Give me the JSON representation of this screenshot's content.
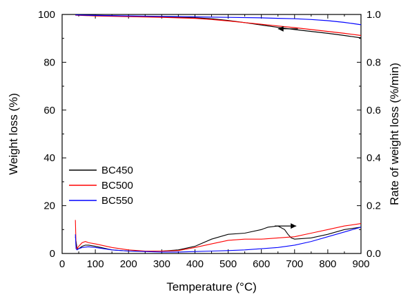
{
  "chart_data": {
    "type": "line",
    "title": "",
    "xlabel": "Temperature (°C)",
    "ylabel_left": "Weight loss (%)",
    "ylabel_right": "Rate of weight loss (%/min)",
    "xlim": [
      0,
      900
    ],
    "ylim_left": [
      0,
      100
    ],
    "ylim_right": [
      0,
      1.0
    ],
    "x_ticks": [
      0,
      100,
      200,
      300,
      400,
      500,
      600,
      700,
      800,
      900
    ],
    "y_left_ticks": [
      0,
      20,
      40,
      60,
      80,
      100
    ],
    "y_right_ticks": [
      "0.0",
      "0.2",
      "0.4",
      "0.6",
      "0.8",
      "1.0"
    ],
    "grid": false,
    "legend_position": "lower-left",
    "series": [
      {
        "name": "BC450",
        "color": "#000000",
        "weight_loss": {
          "x": [
            40,
            100,
            200,
            300,
            400,
            450,
            500,
            550,
            600,
            650,
            700,
            750,
            800,
            850,
            900
          ],
          "y": [
            99.8,
            99.6,
            99.3,
            99.0,
            98.6,
            98.2,
            97.5,
            96.6,
            95.6,
            94.6,
            93.7,
            92.9,
            92.1,
            91.2,
            90.2
          ]
        },
        "rate": {
          "x": [
            40,
            45,
            50,
            60,
            70,
            80,
            100,
            150,
            200,
            250,
            300,
            350,
            400,
            450,
            500,
            550,
            600,
            620,
            650,
            670,
            680,
            690,
            700,
            750,
            800,
            850,
            900
          ],
          "y": [
            0.07,
            0.02,
            0.02,
            0.03,
            0.035,
            0.035,
            0.03,
            0.015,
            0.01,
            0.01,
            0.01,
            0.015,
            0.03,
            0.06,
            0.08,
            0.085,
            0.1,
            0.11,
            0.115,
            0.1,
            0.08,
            0.065,
            0.06,
            0.065,
            0.08,
            0.1,
            0.11
          ]
        }
      },
      {
        "name": "BC500",
        "color": "#ff0000",
        "weight_loss": {
          "x": [
            40,
            100,
            200,
            300,
            400,
            450,
            500,
            550,
            600,
            650,
            700,
            750,
            800,
            850,
            900
          ],
          "y": [
            99.7,
            99.4,
            99.1,
            98.8,
            98.4,
            97.9,
            97.3,
            96.6,
            95.9,
            95.2,
            94.5,
            93.7,
            92.9,
            92.1,
            91.2
          ]
        },
        "rate": {
          "x": [
            40,
            42,
            45,
            50,
            60,
            70,
            80,
            100,
            150,
            200,
            250,
            300,
            350,
            400,
            450,
            500,
            550,
            600,
            650,
            700,
            750,
            800,
            850,
            900
          ],
          "y": [
            0.14,
            0.03,
            0.02,
            0.03,
            0.045,
            0.05,
            0.045,
            0.04,
            0.025,
            0.015,
            0.01,
            0.01,
            0.012,
            0.025,
            0.04,
            0.055,
            0.06,
            0.06,
            0.065,
            0.07,
            0.085,
            0.1,
            0.115,
            0.125
          ]
        }
      },
      {
        "name": "BC550",
        "color": "#0000ff",
        "weight_loss": {
          "x": [
            40,
            100,
            200,
            300,
            400,
            500,
            600,
            650,
            700,
            750,
            800,
            850,
            900
          ],
          "y": [
            99.8,
            99.6,
            99.4,
            99.2,
            99.0,
            98.8,
            98.6,
            98.4,
            98.2,
            97.9,
            97.4,
            96.7,
            95.7
          ]
        },
        "rate": {
          "x": [
            40,
            42,
            45,
            50,
            60,
            80,
            100,
            150,
            200,
            250,
            300,
            350,
            400,
            450,
            500,
            550,
            600,
            650,
            700,
            750,
            800,
            850,
            900
          ],
          "y": [
            0.08,
            0.02,
            0.015,
            0.02,
            0.025,
            0.028,
            0.025,
            0.015,
            0.01,
            0.008,
            0.006,
            0.006,
            0.008,
            0.01,
            0.012,
            0.015,
            0.02,
            0.025,
            0.035,
            0.05,
            0.07,
            0.09,
            0.11
          ]
        }
      }
    ]
  }
}
